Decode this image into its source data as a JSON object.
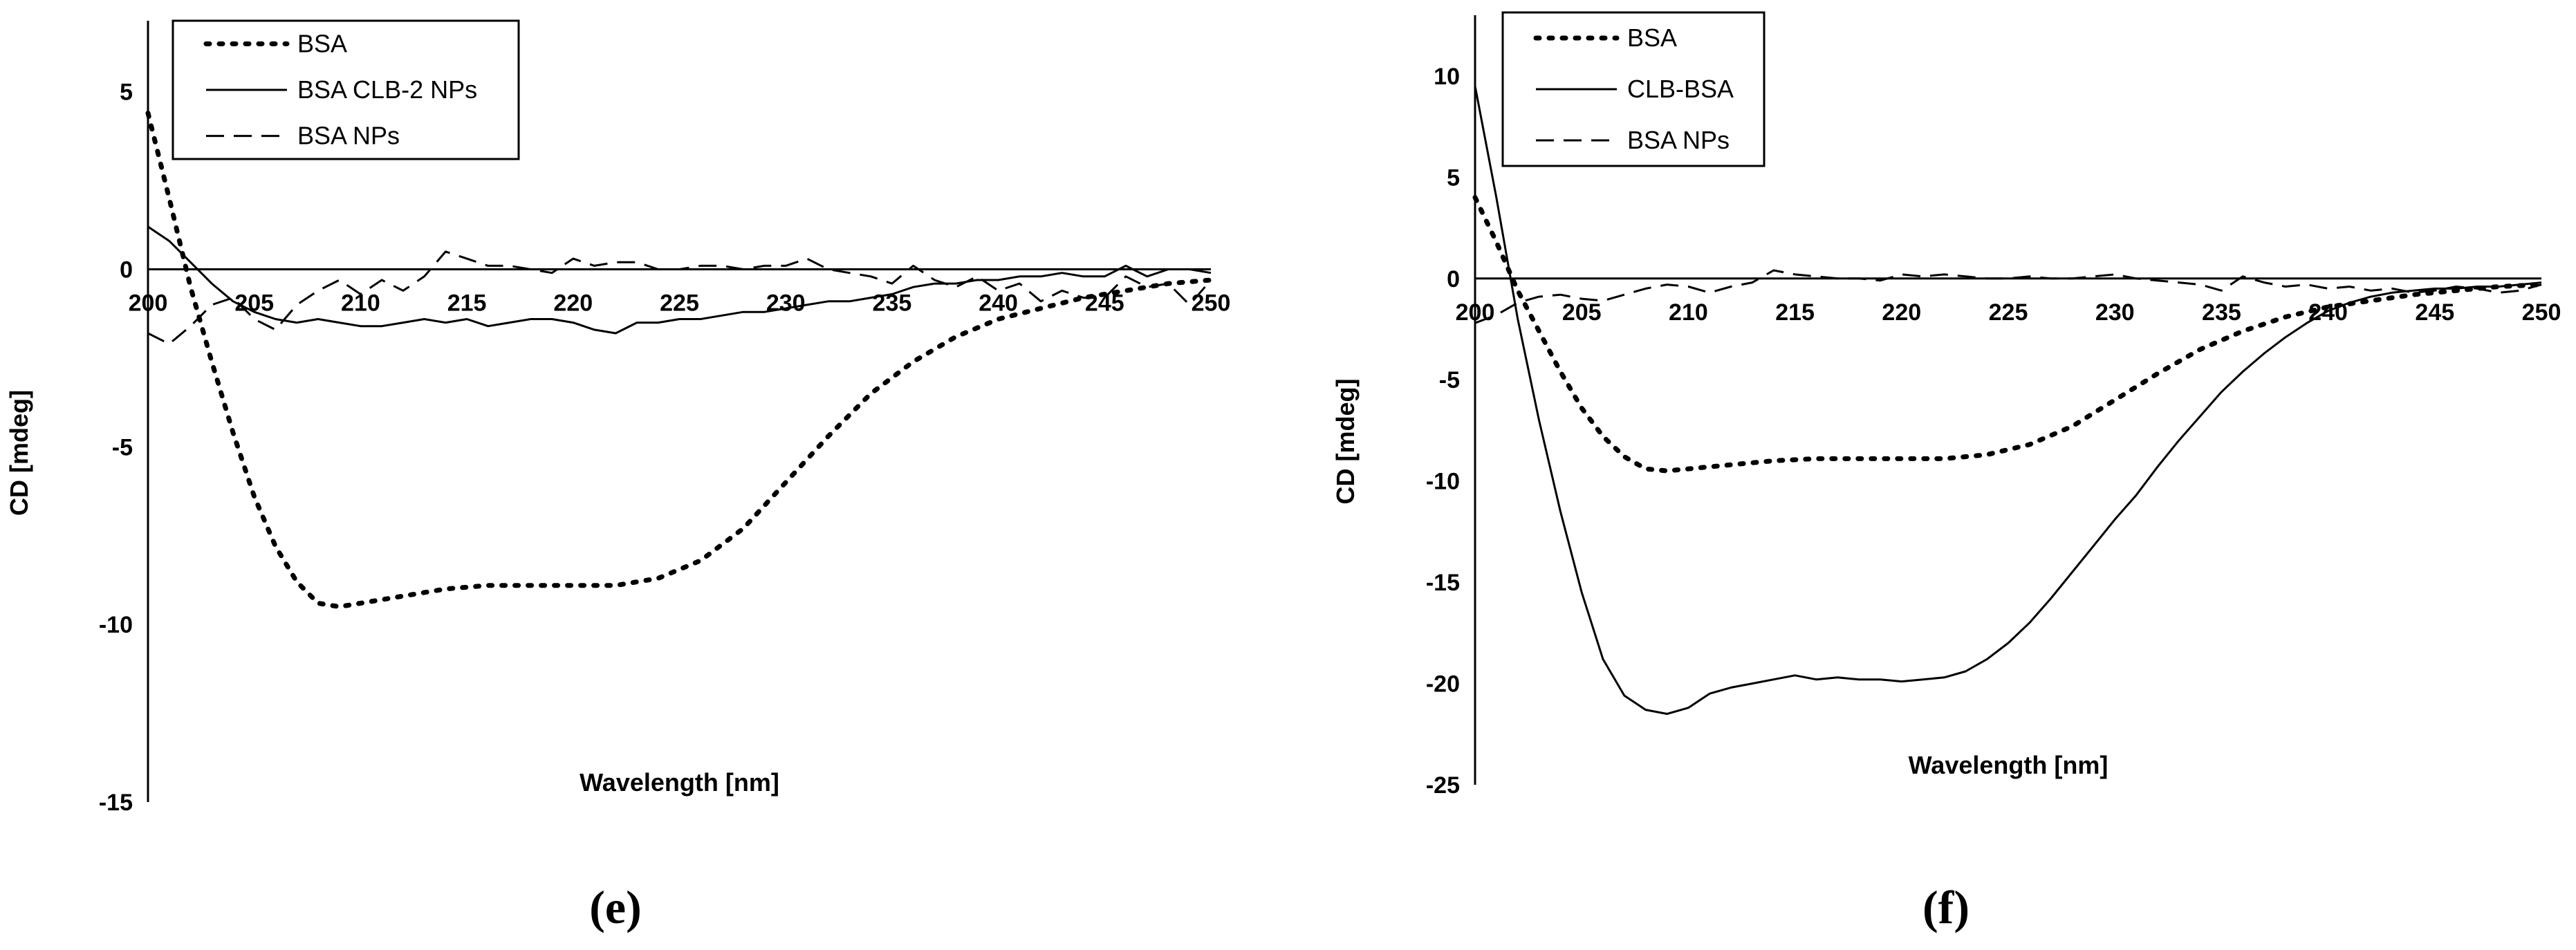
{
  "chart_data": [
    {
      "type": "line",
      "panel_label": "(e)",
      "xlabel": "Wavelength [nm]",
      "ylabel": "CD [mdeg]",
      "xlim": [
        200,
        250
      ],
      "ylim": [
        -15,
        7
      ],
      "x_ticks": [
        200,
        205,
        210,
        215,
        220,
        225,
        230,
        235,
        240,
        245,
        250
      ],
      "y_ticks": [
        5,
        0,
        -5,
        -10,
        -15
      ],
      "legend": "top-left",
      "series": [
        {
          "name": "BSA",
          "style": "dotted",
          "x": [
            200,
            201,
            202,
            203,
            204,
            205,
            206,
            207,
            208,
            209,
            210,
            212,
            214,
            216,
            218,
            220,
            222,
            224,
            226,
            228,
            230,
            232,
            234,
            236,
            238,
            240,
            242,
            244,
            246,
            248,
            250
          ],
          "y": [
            4.4,
            2.0,
            -0.5,
            -2.6,
            -4.6,
            -6.4,
            -7.8,
            -8.8,
            -9.4,
            -9.5,
            -9.4,
            -9.2,
            -9.0,
            -8.9,
            -8.9,
            -8.9,
            -8.9,
            -8.7,
            -8.2,
            -7.3,
            -6.0,
            -4.7,
            -3.5,
            -2.6,
            -1.9,
            -1.4,
            -1.1,
            -0.8,
            -0.6,
            -0.4,
            -0.3
          ]
        },
        {
          "name": "BSA CLB-2 NPs",
          "style": "solid",
          "x": [
            200,
            201,
            202,
            203,
            204,
            205,
            206,
            207,
            208,
            209,
            210,
            211,
            212,
            213,
            214,
            215,
            216,
            217,
            218,
            219,
            220,
            221,
            222,
            223,
            224,
            225,
            226,
            227,
            228,
            229,
            230,
            231,
            232,
            233,
            234,
            235,
            236,
            237,
            238,
            239,
            240,
            241,
            242,
            243,
            244,
            245,
            246,
            247,
            248,
            249,
            250
          ],
          "y": [
            1.2,
            0.8,
            0.2,
            -0.4,
            -0.9,
            -1.2,
            -1.4,
            -1.5,
            -1.4,
            -1.5,
            -1.6,
            -1.6,
            -1.5,
            -1.4,
            -1.5,
            -1.4,
            -1.6,
            -1.5,
            -1.4,
            -1.4,
            -1.5,
            -1.7,
            -1.8,
            -1.5,
            -1.5,
            -1.4,
            -1.4,
            -1.3,
            -1.2,
            -1.2,
            -1.1,
            -1.0,
            -0.9,
            -0.9,
            -0.8,
            -0.7,
            -0.5,
            -0.4,
            -0.4,
            -0.3,
            -0.3,
            -0.2,
            -0.2,
            -0.1,
            -0.2,
            -0.2,
            0.1,
            -0.2,
            0.0,
            0.0,
            -0.1
          ]
        },
        {
          "name": "BSA NPs",
          "style": "dashed",
          "x": [
            200,
            201,
            202,
            203,
            204,
            205,
            206,
            207,
            208,
            209,
            210,
            211,
            212,
            213,
            214,
            215,
            216,
            217,
            218,
            219,
            220,
            221,
            222,
            223,
            224,
            225,
            226,
            227,
            228,
            229,
            230,
            231,
            232,
            233,
            234,
            235,
            236,
            237,
            238,
            239,
            240,
            241,
            242,
            243,
            244,
            245,
            246,
            247,
            248,
            249,
            250
          ],
          "y": [
            -1.8,
            -2.1,
            -1.6,
            -1.0,
            -0.8,
            -1.4,
            -1.7,
            -1.0,
            -0.6,
            -0.3,
            -0.7,
            -0.3,
            -0.6,
            -0.2,
            0.5,
            0.3,
            0.1,
            0.1,
            0.0,
            -0.1,
            0.3,
            0.1,
            0.2,
            0.2,
            0.0,
            0.0,
            0.1,
            0.1,
            0.0,
            0.1,
            0.1,
            0.3,
            0.0,
            -0.1,
            -0.2,
            -0.4,
            0.1,
            -0.3,
            -0.5,
            -0.2,
            -0.6,
            -0.4,
            -0.9,
            -0.6,
            -0.8,
            -0.8,
            -0.2,
            -0.5,
            -0.4,
            -1.0,
            -0.3
          ]
        }
      ]
    },
    {
      "type": "line",
      "panel_label": "(f)",
      "xlabel": "Wavelength [nm]",
      "ylabel": "CD [mdeg]",
      "xlim": [
        200,
        250
      ],
      "ylim": [
        -25,
        13
      ],
      "x_ticks": [
        200,
        205,
        210,
        215,
        220,
        225,
        230,
        235,
        240,
        245,
        250
      ],
      "y_ticks": [
        10,
        5,
        0,
        -5,
        -10,
        -15,
        -20,
        -25
      ],
      "legend": "top-left",
      "series": [
        {
          "name": "BSA",
          "style": "dotted",
          "x": [
            200,
            201,
            202,
            203,
            204,
            205,
            206,
            207,
            208,
            209,
            210,
            212,
            214,
            216,
            218,
            220,
            222,
            224,
            226,
            228,
            230,
            232,
            234,
            236,
            238,
            240,
            242,
            244,
            246,
            248,
            250
          ],
          "y": [
            4.0,
            1.8,
            -0.6,
            -2.6,
            -4.6,
            -6.4,
            -7.8,
            -8.8,
            -9.4,
            -9.5,
            -9.4,
            -9.2,
            -9.0,
            -8.9,
            -8.9,
            -8.9,
            -8.9,
            -8.7,
            -8.2,
            -7.3,
            -6.0,
            -4.7,
            -3.5,
            -2.6,
            -1.9,
            -1.4,
            -1.1,
            -0.8,
            -0.6,
            -0.4,
            -0.3
          ]
        },
        {
          "name": "CLB-BSA",
          "style": "solid",
          "x": [
            200,
            201,
            202,
            203,
            204,
            205,
            206,
            207,
            208,
            209,
            210,
            211,
            212,
            213,
            214,
            215,
            216,
            217,
            218,
            219,
            220,
            221,
            222,
            223,
            224,
            225,
            226,
            227,
            228,
            229,
            230,
            231,
            232,
            233,
            234,
            235,
            236,
            237,
            238,
            239,
            240,
            241,
            242,
            243,
            244,
            245,
            246,
            247,
            248,
            249,
            250
          ],
          "y": [
            9.5,
            4.0,
            -2.0,
            -7.0,
            -11.5,
            -15.5,
            -18.8,
            -20.6,
            -21.3,
            -21.5,
            -21.2,
            -20.5,
            -20.2,
            -20.0,
            -19.8,
            -19.6,
            -19.8,
            -19.7,
            -19.8,
            -19.8,
            -19.9,
            -19.8,
            -19.7,
            -19.4,
            -18.8,
            -18.0,
            -17.0,
            -15.8,
            -14.5,
            -13.2,
            -11.9,
            -10.7,
            -9.3,
            -8.0,
            -6.8,
            -5.6,
            -4.6,
            -3.7,
            -2.9,
            -2.2,
            -1.6,
            -1.2,
            -0.9,
            -0.7,
            -0.6,
            -0.5,
            -0.5,
            -0.4,
            -0.4,
            -0.3,
            -0.2
          ]
        },
        {
          "name": "BSA NPs",
          "style": "dashed",
          "x": [
            200,
            201,
            202,
            203,
            204,
            205,
            206,
            207,
            208,
            209,
            210,
            211,
            212,
            213,
            214,
            215,
            216,
            217,
            218,
            219,
            220,
            221,
            222,
            223,
            224,
            225,
            226,
            227,
            228,
            229,
            230,
            231,
            232,
            233,
            234,
            235,
            236,
            237,
            238,
            239,
            240,
            241,
            242,
            243,
            244,
            245,
            246,
            247,
            248,
            249,
            250
          ],
          "y": [
            -2.2,
            -1.8,
            -1.2,
            -0.9,
            -0.8,
            -1.0,
            -1.1,
            -0.8,
            -0.5,
            -0.3,
            -0.4,
            -0.7,
            -0.4,
            -0.2,
            0.4,
            0.2,
            0.1,
            0.0,
            0.0,
            -0.1,
            0.2,
            0.1,
            0.2,
            0.1,
            0.0,
            0.0,
            0.1,
            0.0,
            0.0,
            0.1,
            0.2,
            0.0,
            -0.1,
            -0.2,
            -0.3,
            -0.6,
            0.1,
            -0.2,
            -0.4,
            -0.3,
            -0.5,
            -0.4,
            -0.6,
            -0.5,
            -0.7,
            -0.6,
            -0.4,
            -0.5,
            -0.7,
            -0.6,
            -0.3
          ]
        }
      ]
    }
  ]
}
